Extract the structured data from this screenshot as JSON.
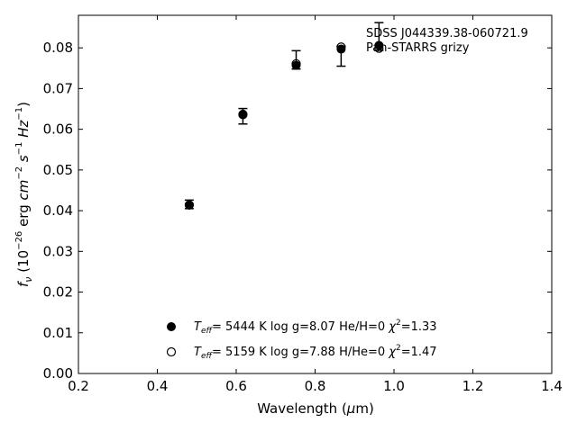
{
  "chart_data": {
    "type": "scatter",
    "xlabel": {
      "main": "Wavelength (",
      "greek": "μ",
      "unit": "m)"
    },
    "ylabel": {
      "base": "f",
      "sub": "ν",
      "rest": " (10",
      "exp1": "−26",
      "mid": " erg ",
      "cm": "cm",
      "exp2": "−2",
      "s": " s",
      "exp3": "−1",
      "hz": " Hz",
      "exp4": "−1",
      "end": ")"
    },
    "xlim": [
      0.2,
      1.4
    ],
    "ylim": [
      0.0,
      0.088
    ],
    "x_ticks": [
      0.2,
      0.4,
      0.6,
      0.8,
      1.0,
      1.2,
      1.4
    ],
    "x_tick_labels": [
      "0.2",
      "0.4",
      "0.6",
      "0.8",
      "1.0",
      "1.2",
      "1.4"
    ],
    "y_ticks": [
      0.0,
      0.01,
      0.02,
      0.03,
      0.04,
      0.05,
      0.06,
      0.07,
      0.08
    ],
    "y_tick_labels": [
      "0.00",
      "0.01",
      "0.02",
      "0.03",
      "0.04",
      "0.05",
      "0.06",
      "0.07",
      "0.08"
    ],
    "annotation": [
      "SDSS J044339.38-060721.9",
      "Pan-STARRS grizy"
    ],
    "observed": {
      "x": [
        0.481,
        0.617,
        0.752,
        0.866,
        0.962
      ],
      "y": [
        0.0412,
        0.0633,
        0.0753,
        0.0799,
        0.0803
      ],
      "yerr_low": [
        0.0007,
        0.002,
        0.0005,
        0.0044,
        0.0009
      ],
      "yerr_high": [
        0.0014,
        0.0018,
        0.004,
        0.0005,
        0.0059
      ]
    },
    "series": [
      {
        "marker": "filled",
        "label_teff": "T",
        "label_teff_sub": "eff",
        "label_a": "=  5444 K  log g=8.07  He/H=0  ",
        "label_chi": "χ",
        "label_chi_exp": "2",
        "label_b": "=1.33",
        "x": [
          0.481,
          0.617,
          0.752,
          0.866,
          0.962
        ],
        "y": [
          0.0414,
          0.0637,
          0.0757,
          0.0797,
          0.0806
        ]
      },
      {
        "marker": "open",
        "label_teff": "T",
        "label_teff_sub": "eff",
        "label_a": "=  5159 K  log g=7.88  H/He=0  ",
        "label_chi": "χ",
        "label_chi_exp": "2",
        "label_b": "=1.47",
        "x": [
          0.481,
          0.617,
          0.752,
          0.866,
          0.962
        ],
        "y": [
          0.0414,
          0.0636,
          0.0761,
          0.0802,
          0.0799
        ]
      }
    ]
  }
}
